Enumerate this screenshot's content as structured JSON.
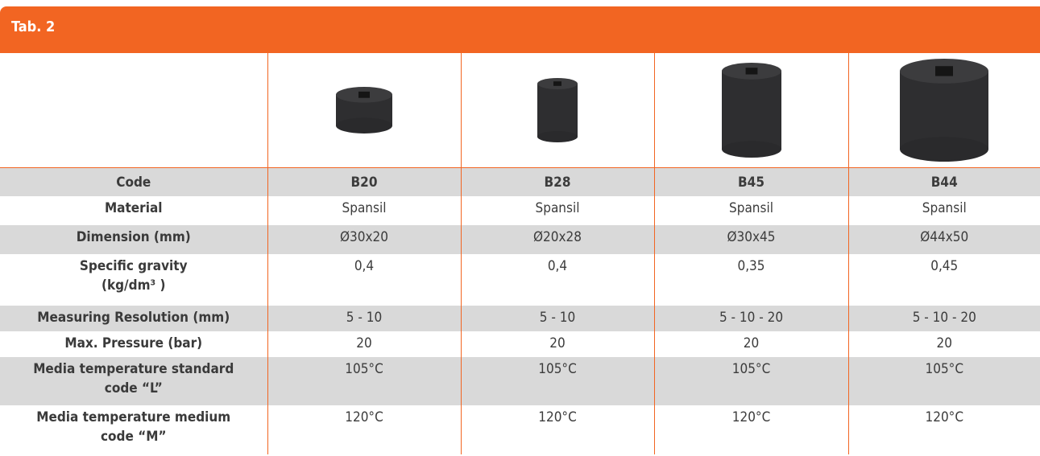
{
  "header": {
    "title": "Tab. 2"
  },
  "table": {
    "rows": [
      [
        "Code",
        "B20",
        "B28",
        "B45",
        "B44"
      ],
      [
        "Material",
        "Spansil",
        "Spansil",
        "Spansil",
        "Spansil"
      ],
      [
        "Dimension (mm)",
        "Ø30x20",
        "Ø20x28",
        "Ø30x45",
        "Ø44x50"
      ],
      [
        "Specific gravity\n(kg/dm³ )",
        "0,4",
        "0,4",
        "0,35",
        "0,45"
      ],
      [
        "Measuring Resolution (mm)",
        "5 - 10",
        "5 - 10",
        "5 - 10 - 20",
        "5 - 10 - 20"
      ],
      [
        "Max. Pressure (bar)",
        "20",
        "20",
        "20",
        "20"
      ],
      [
        "Media temperature standard\ncode “L”",
        "105°C",
        "105°C",
        "105°C",
        "105°C"
      ],
      [
        "Media temperature medium\ncode “M”",
        "120°C",
        "120°C",
        "120°C",
        "120°C"
      ]
    ]
  }
}
